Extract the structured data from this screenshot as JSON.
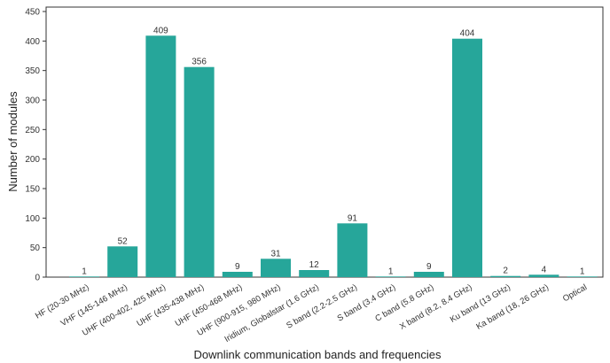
{
  "chart_data": {
    "type": "bar",
    "xlabel": "Downlink communication bands and frequencies",
    "ylabel": "Number of modules",
    "ylim": [
      0,
      450
    ],
    "yticks": [
      0,
      50,
      100,
      150,
      200,
      250,
      300,
      350,
      400,
      450
    ],
    "grid": false,
    "bar_color": "#26a69a",
    "categories": [
      "HF (20-30 MHz)",
      "VHF (145-146 MHz)",
      "UHF (400-402, 425 MHz)",
      "UHF (435-438 MHz)",
      "UHF (450-468 MHz)",
      "UHF (900-915, 980 MHz)",
      "Iridium, Globalstar (1.6 GHz)",
      "S band (2.2-2.5 GHz)",
      "S band (3.4 GHz)",
      "C band (5.8 GHz)",
      "X band (8.2, 8.4 GHz)",
      "Ku band (13 GHz)",
      "Ka band (18, 26 GHz)",
      "Optical"
    ],
    "values": [
      1,
      52,
      409,
      356,
      9,
      31,
      12,
      91,
      1,
      9,
      404,
      2,
      4,
      1
    ],
    "data_labels": [
      "1",
      "52",
      "409",
      "356",
      "9",
      "31",
      "12",
      "91",
      "1",
      "9",
      "404",
      "2",
      "4",
      "1"
    ]
  }
}
